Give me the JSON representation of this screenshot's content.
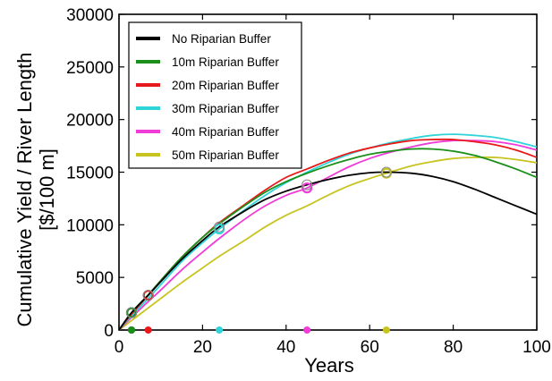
{
  "chart_data": {
    "type": "line",
    "title": "",
    "xlabel": "Years",
    "ylabel_line1": "Cumulative Yield / River Length",
    "ylabel_line2": "[$/100 m]",
    "xlim": [
      0,
      100
    ],
    "ylim": [
      0,
      30000
    ],
    "xticks": [
      0,
      20,
      40,
      60,
      80,
      100
    ],
    "yticks": [
      0,
      5000,
      10000,
      15000,
      20000,
      25000,
      30000
    ],
    "xtick_labels": [
      "0",
      "20",
      "40",
      "60",
      "80",
      "100"
    ],
    "ytick_labels": [
      "0",
      "5000",
      "10000",
      "15000",
      "20000",
      "25000",
      "30000"
    ],
    "grid": false,
    "legend_position": "top-left",
    "series": [
      {
        "name": "No Riparian Buffer",
        "color": "#000000",
        "x": [
          0,
          3,
          7,
          10,
          15,
          20,
          24,
          30,
          35,
          40,
          45,
          50,
          55,
          60,
          64,
          70,
          75,
          80,
          85,
          90,
          95,
          100
        ],
        "y": [
          0,
          1650,
          3300,
          4600,
          6700,
          8500,
          9800,
          11300,
          12400,
          13200,
          13800,
          14300,
          14700,
          14950,
          15000,
          14900,
          14600,
          14100,
          13400,
          12600,
          11800,
          11000
        ],
        "marker_points": [
          3,
          7,
          24,
          45,
          64
        ],
        "marker_x": 3
      },
      {
        "name": "10m Riparian Buffer",
        "color": "#1a8f1a",
        "x": [
          0,
          3,
          7,
          10,
          15,
          20,
          24,
          30,
          35,
          40,
          45,
          50,
          55,
          60,
          65,
          70,
          75,
          80,
          85,
          90,
          95,
          100
        ],
        "y": [
          0,
          1650,
          3350,
          4700,
          6900,
          8800,
          10100,
          11800,
          13100,
          14100,
          14900,
          15600,
          16200,
          16700,
          17000,
          17200,
          17200,
          17000,
          16600,
          16000,
          15300,
          14500
        ],
        "marker_points": [
          3
        ],
        "marker_x": 3
      },
      {
        "name": "20m Riparian Buffer",
        "color": "#e8191a",
        "x": [
          0,
          3,
          7,
          10,
          15,
          20,
          24,
          30,
          35,
          40,
          45,
          50,
          55,
          60,
          65,
          70,
          75,
          80,
          85,
          90,
          95,
          100
        ],
        "y": [
          0,
          1500,
          3300,
          4700,
          6900,
          8800,
          10200,
          11900,
          13300,
          14500,
          15300,
          16100,
          16800,
          17300,
          17700,
          18000,
          18100,
          18100,
          17900,
          17600,
          17100,
          16400
        ],
        "marker_points": [
          7
        ],
        "marker_x": 7
      },
      {
        "name": "30m Riparian Buffer",
        "color": "#2fd4d8",
        "x": [
          0,
          3,
          7,
          10,
          15,
          20,
          24,
          30,
          35,
          40,
          45,
          50,
          55,
          60,
          65,
          70,
          75,
          80,
          85,
          90,
          95,
          100
        ],
        "y": [
          0,
          1350,
          3000,
          4300,
          6500,
          8300,
          9600,
          11400,
          12800,
          14000,
          15000,
          15900,
          16700,
          17300,
          17800,
          18200,
          18500,
          18600,
          18500,
          18300,
          17900,
          17400
        ],
        "marker_points": [
          24
        ],
        "marker_x": 24
      },
      {
        "name": "40m Riparian Buffer",
        "color": "#f03cd8",
        "x": [
          0,
          3,
          7,
          10,
          15,
          20,
          24,
          30,
          35,
          40,
          45,
          50,
          55,
          60,
          65,
          70,
          75,
          80,
          85,
          90,
          95,
          100
        ],
        "y": [
          0,
          1200,
          2700,
          3800,
          5700,
          7400,
          8700,
          10500,
          11800,
          12800,
          13500,
          14500,
          15500,
          16300,
          16900,
          17400,
          17800,
          18000,
          18000,
          17900,
          17600,
          17100
        ],
        "marker_points": [
          45
        ],
        "marker_x": 45
      },
      {
        "name": "50m Riparian Buffer",
        "color": "#c8c41f",
        "x": [
          0,
          3,
          7,
          10,
          15,
          20,
          24,
          30,
          35,
          40,
          45,
          50,
          55,
          60,
          64,
          70,
          75,
          80,
          85,
          90,
          95,
          100
        ],
        "y": [
          0,
          900,
          2100,
          3000,
          4500,
          5900,
          7000,
          8500,
          9800,
          10900,
          11800,
          12800,
          13700,
          14400,
          14900,
          15600,
          16000,
          16300,
          16400,
          16400,
          16200,
          15900
        ],
        "marker_points": [
          64
        ],
        "marker_x": 64
      }
    ]
  }
}
